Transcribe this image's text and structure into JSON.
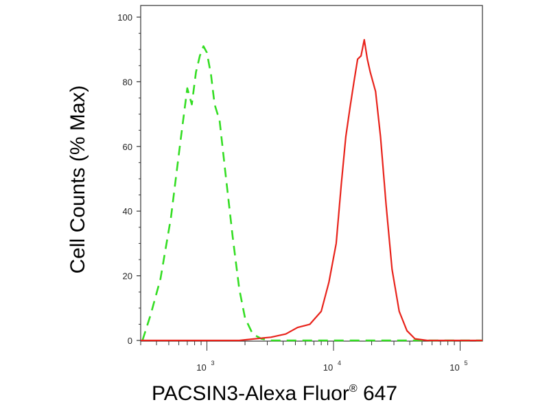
{
  "chart_data": {
    "type": "line",
    "xlabel_main": "PACSIN3-Alexa Fluor",
    "xlabel_sup": "®",
    "xlabel_tail": " 647",
    "ylabel": "Cell Counts (% Max)",
    "x_scale": "log",
    "xlim": [
      300,
      150000
    ],
    "ylim": [
      0,
      100
    ],
    "y_ticks": [
      0,
      20,
      40,
      60,
      80,
      100
    ],
    "x_ticks": [
      {
        "value": 1000,
        "base": "10",
        "exp": "3"
      },
      {
        "value": 10000,
        "base": "10",
        "exp": "4"
      },
      {
        "value": 100000,
        "base": "10",
        "exp": "5"
      }
    ],
    "grid": false,
    "series": [
      {
        "color": "#33dd22",
        "style": "dashed",
        "points": [
          [
            310,
            0
          ],
          [
            360,
            8
          ],
          [
            430,
            19
          ],
          [
            520,
            38
          ],
          [
            620,
            62
          ],
          [
            700,
            78
          ],
          [
            760,
            73
          ],
          [
            820,
            83
          ],
          [
            880,
            88
          ],
          [
            940,
            91
          ],
          [
            1000,
            89
          ],
          [
            1080,
            82
          ],
          [
            1150,
            73
          ],
          [
            1260,
            68
          ],
          [
            1400,
            52
          ],
          [
            1600,
            32
          ],
          [
            1800,
            16
          ],
          [
            2000,
            7
          ],
          [
            2300,
            2
          ],
          [
            2700,
            0.5
          ],
          [
            3200,
            0
          ],
          [
            150000,
            0
          ]
        ]
      },
      {
        "color": "#e8221a",
        "style": "solid",
        "points": [
          [
            300,
            0
          ],
          [
            900,
            0
          ],
          [
            1800,
            0
          ],
          [
            2400,
            0.5
          ],
          [
            3200,
            1
          ],
          [
            4200,
            2
          ],
          [
            5200,
            4
          ],
          [
            6500,
            5
          ],
          [
            8000,
            9
          ],
          [
            9200,
            18
          ],
          [
            10500,
            30
          ],
          [
            11500,
            48
          ],
          [
            12500,
            63
          ],
          [
            13500,
            72
          ],
          [
            14500,
            80
          ],
          [
            15500,
            87
          ],
          [
            16500,
            88
          ],
          [
            17500,
            93
          ],
          [
            18500,
            87
          ],
          [
            19500,
            83
          ],
          [
            21500,
            77
          ],
          [
            23500,
            63
          ],
          [
            26000,
            42
          ],
          [
            29000,
            22
          ],
          [
            33000,
            9
          ],
          [
            38000,
            3
          ],
          [
            44000,
            0.5
          ],
          [
            55000,
            0
          ],
          [
            150000,
            0
          ]
        ]
      }
    ]
  }
}
